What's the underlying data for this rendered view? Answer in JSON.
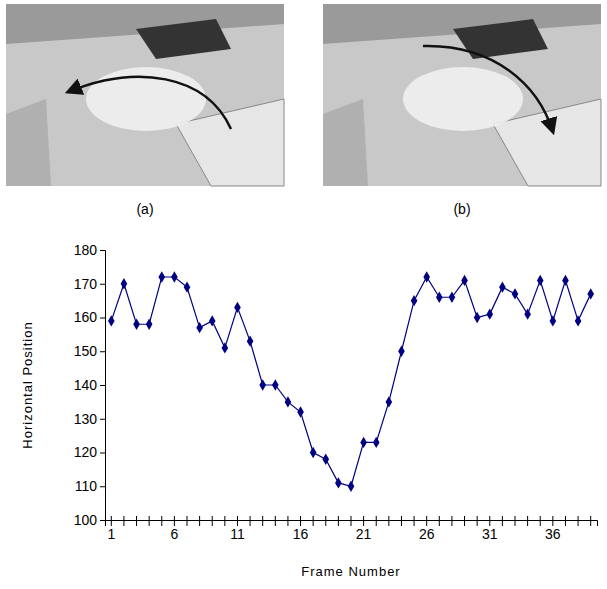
{
  "panels": [
    {
      "label": "(a)"
    },
    {
      "label": "(b)"
    }
  ],
  "chart_data": {
    "type": "line",
    "x_label": "Frame Number",
    "y_label": "Horizontal Position",
    "categories": [
      1,
      null,
      null,
      null,
      null,
      6,
      null,
      null,
      null,
      null,
      11,
      null,
      null,
      null,
      null,
      16,
      null,
      null,
      null,
      null,
      21,
      null,
      null,
      null,
      null,
      26,
      null,
      null,
      null,
      null,
      31,
      null,
      null,
      null,
      null,
      36,
      null,
      null,
      null
    ],
    "values": [
      159,
      170,
      158,
      158,
      172,
      172,
      169,
      157,
      159,
      151,
      163,
      153,
      140,
      140,
      135,
      132,
      120,
      118,
      111,
      110,
      123,
      123,
      135,
      150,
      165,
      172,
      166,
      166,
      171,
      160,
      161,
      169,
      167,
      161,
      171,
      159,
      171,
      159,
      167
    ],
    "color": "#000080",
    "marker": "diamond",
    "ylim": [
      100,
      180
    ],
    "yticks": [
      100,
      110,
      120,
      130,
      140,
      150,
      160,
      170,
      180
    ],
    "grid": false
  }
}
